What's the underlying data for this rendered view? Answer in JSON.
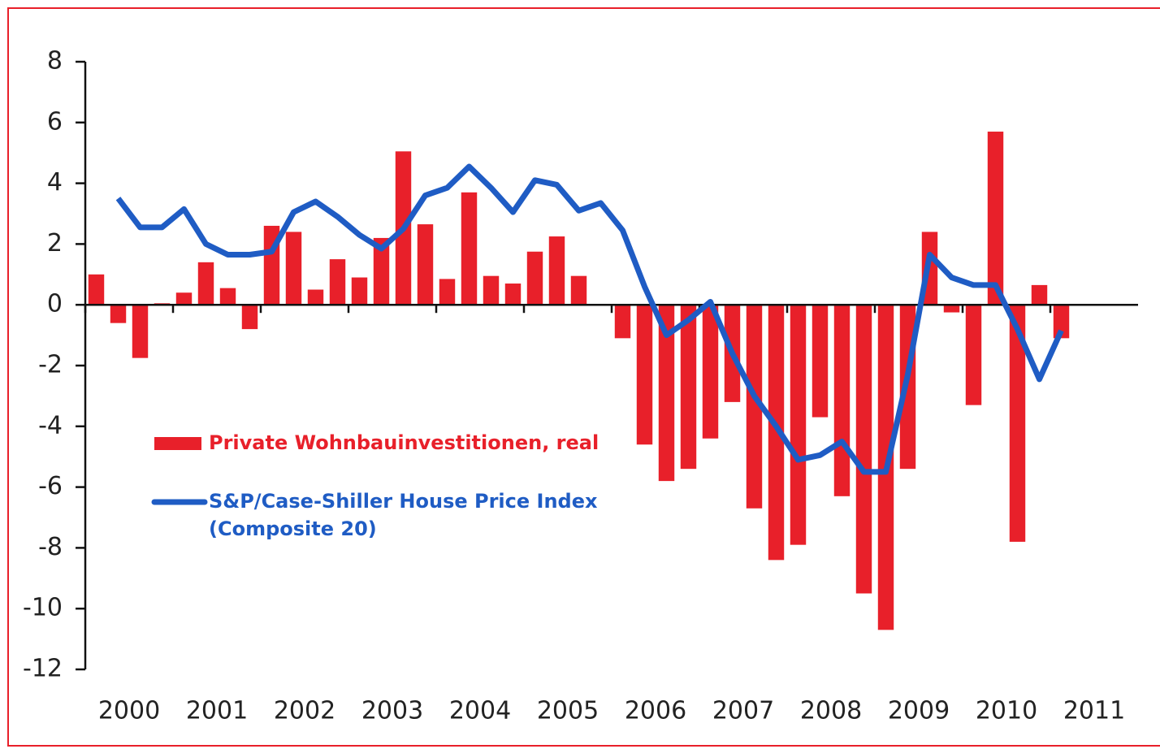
{
  "chart_data": {
    "type": "bar_line",
    "x": [
      2000.125,
      2000.375,
      2000.625,
      2000.875,
      2001.125,
      2001.375,
      2001.625,
      2001.875,
      2002.125,
      2002.375,
      2002.625,
      2002.875,
      2003.125,
      2003.375,
      2003.625,
      2003.875,
      2004.125,
      2004.375,
      2004.625,
      2004.875,
      2005.125,
      2005.375,
      2005.625,
      2005.875,
      2006.125,
      2006.375,
      2006.625,
      2006.875,
      2007.125,
      2007.375,
      2007.625,
      2007.875,
      2008.125,
      2008.375,
      2008.625,
      2008.875,
      2009.125,
      2009.375,
      2009.625,
      2009.875,
      2010.125,
      2010.375,
      2010.625,
      2010.875,
      2011.125
    ],
    "series": [
      {
        "name": "Private Wohnbauinvestitionen,  real",
        "kind": "bar",
        "color": "#e8202a",
        "values": [
          1.0,
          -0.6,
          -1.75,
          0.05,
          0.4,
          1.4,
          0.55,
          -0.8,
          2.6,
          2.4,
          0.5,
          1.5,
          0.9,
          2.2,
          5.05,
          2.65,
          0.85,
          3.7,
          0.95,
          0.7,
          1.75,
          2.25,
          0.95,
          0,
          -1.1,
          -4.6,
          -5.8,
          -5.4,
          -4.4,
          -3.2,
          -6.7,
          -8.4,
          -7.9,
          -3.7,
          -6.3,
          -9.5,
          -10.7,
          -5.4,
          2.4,
          -0.25,
          -3.3,
          5.7,
          -7.8,
          0.65,
          -1.1
        ]
      },
      {
        "name": "S&P/Case-Shiller House Price Index (Composite 20)",
        "kind": "line",
        "color": "#1f5cc4",
        "values": [
          null,
          3.5,
          2.55,
          2.55,
          3.15,
          2.0,
          1.65,
          1.65,
          1.75,
          3.05,
          3.4,
          2.9,
          2.3,
          1.85,
          2.5,
          3.6,
          3.85,
          4.55,
          3.85,
          3.05,
          4.1,
          3.95,
          3.1,
          3.35,
          2.45,
          0.6,
          -1.0,
          -0.5,
          0.1,
          -1.6,
          -3.0,
          -4.0,
          -5.1,
          -4.95,
          -4.5,
          -5.5,
          -5.5,
          -2.3,
          1.65,
          0.9,
          0.65,
          0.65,
          -0.8,
          -2.45,
          -0.85
        ]
      }
    ],
    "xlim": [
      2000,
      2012
    ],
    "xticks": [
      2000,
      2001,
      2002,
      2003,
      2004,
      2005,
      2006,
      2007,
      2008,
      2009,
      2010,
      2011
    ],
    "ylim": [
      -12,
      8
    ],
    "yticks": [
      -12,
      -10,
      -8,
      -6,
      -4,
      -2,
      0,
      2,
      4,
      6,
      8
    ]
  }
}
